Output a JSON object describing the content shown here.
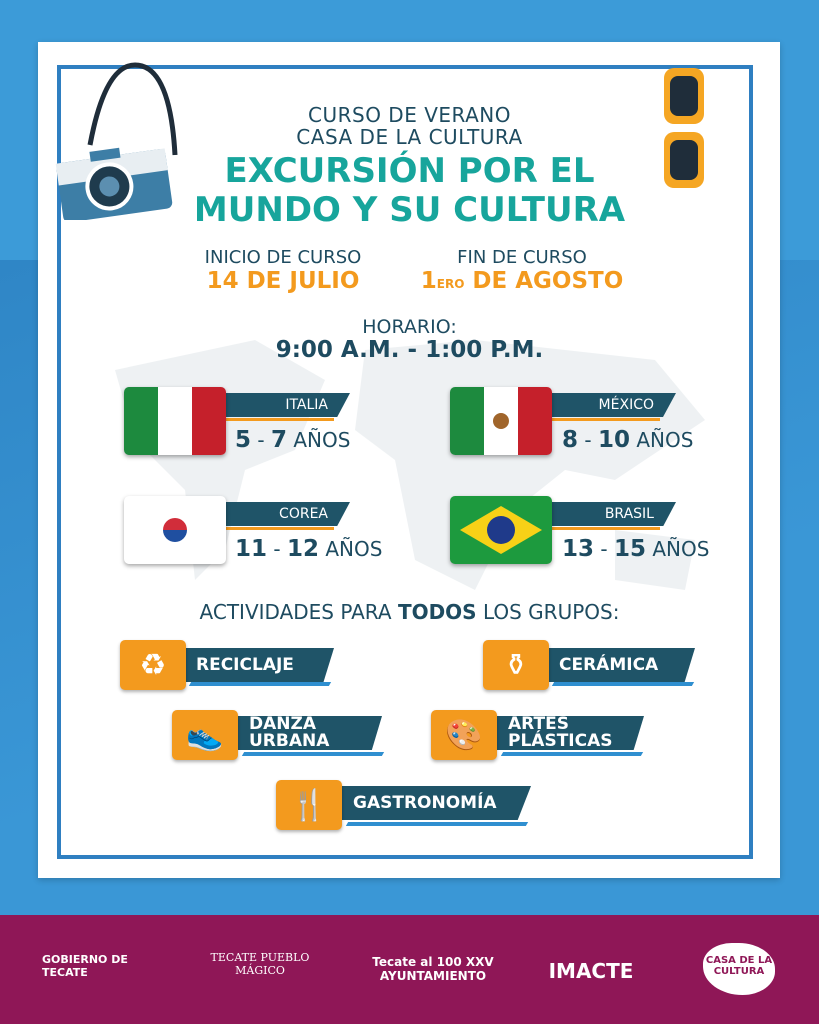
{
  "header": {
    "line1": "CURSO DE VERANO",
    "line2": "CASA DE LA CULTURA",
    "title1": "EXCURSIÓN POR EL",
    "title2": "MUNDO Y SU CULTURA"
  },
  "dates": {
    "start_label": "INICIO DE CURSO",
    "start_value": "14 DE JULIO",
    "end_label": "FIN DE CURSO",
    "end_prefix": "1",
    "end_sup": "ERO",
    "end_value": "DE AGOSTO"
  },
  "schedule": {
    "label": "HORARIO:",
    "value": "9:00 A.M. - 1:00 P.M."
  },
  "groups": [
    {
      "country": "ITALIA",
      "min": "5",
      "max": "7",
      "unit": "AÑOS"
    },
    {
      "country": "MÉXICO",
      "min": "8",
      "max": "10",
      "unit": "AÑOS"
    },
    {
      "country": "COREA",
      "min": "11",
      "max": "12",
      "unit": "AÑOS"
    },
    {
      "country": "BRASIL",
      "min": "13",
      "max": "15",
      "unit": "AÑOS"
    }
  ],
  "activities_heading": {
    "pre": "ACTIVIDADES PARA ",
    "bold": "TODOS",
    "post": " LOS GRUPOS:"
  },
  "activities": [
    {
      "label": "RECICLAJE",
      "icon": "recycle-icon"
    },
    {
      "label": "CERÁMICA",
      "icon": "pottery-icon"
    },
    {
      "label": "DANZA URBANA",
      "icon": "sneaker-icon"
    },
    {
      "label": "ARTES PLÁSTICAS",
      "icon": "palette-icon"
    },
    {
      "label": "GASTRONOMÍA",
      "icon": "cutlery-icon"
    }
  ],
  "footer": {
    "logos": [
      "GOBIERNO DE TECATE",
      "TECATE PUEBLO MÁGICO",
      "Tecate al 100 XXV AYUNTAMIENTO",
      "IMACTE",
      "CASA DE LA CULTURA"
    ]
  },
  "colors": {
    "teal": "#17a59c",
    "dark": "#1f5468",
    "orange": "#f39a1e",
    "blue": "#3c9bd8",
    "magenta": "#8f1757"
  }
}
